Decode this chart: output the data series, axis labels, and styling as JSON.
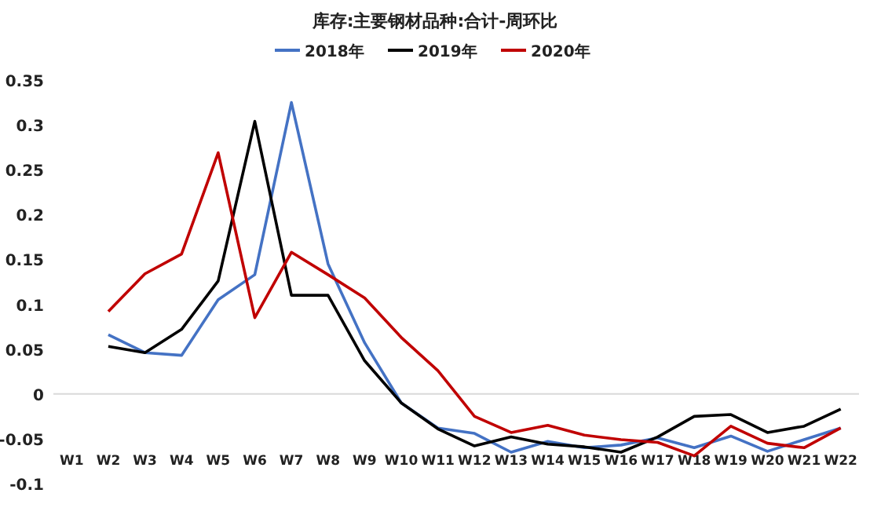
{
  "chart_data": {
    "type": "line",
    "title": "库存:主要钢材品种:合计-周环比",
    "categories": [
      "W1",
      "W2",
      "W3",
      "W4",
      "W5",
      "W6",
      "W7",
      "W8",
      "W9",
      "W10",
      "W11",
      "W12",
      "W13",
      "W14",
      "W15",
      "W16",
      "W17",
      "W18",
      "W19",
      "W20",
      "W21",
      "W22"
    ],
    "series": [
      {
        "name": "2018年",
        "color": "#4472c4",
        "values": [
          null,
          0.066,
          0.046,
          0.043,
          0.105,
          0.133,
          0.325,
          0.145,
          0.057,
          -0.01,
          -0.038,
          -0.044,
          -0.065,
          -0.053,
          -0.06,
          -0.057,
          -0.049,
          -0.06,
          -0.047,
          -0.064,
          -0.051,
          -0.038
        ]
      },
      {
        "name": "2019年",
        "color": "#000000",
        "values": [
          null,
          0.053,
          0.046,
          0.072,
          0.126,
          0.304,
          0.11,
          0.11,
          0.037,
          -0.01,
          -0.039,
          -0.058,
          -0.048,
          -0.056,
          -0.059,
          -0.065,
          -0.048,
          -0.025,
          -0.023,
          -0.043,
          -0.036,
          -0.017
        ]
      },
      {
        "name": "2020年",
        "color": "#c00000",
        "values": [
          null,
          0.092,
          0.134,
          0.156,
          0.269,
          0.085,
          0.158,
          0.133,
          0.107,
          0.063,
          0.026,
          -0.025,
          -0.043,
          -0.035,
          -0.046,
          -0.051,
          -0.054,
          -0.069,
          -0.036,
          -0.055,
          -0.06,
          -0.038
        ]
      }
    ],
    "ylim": [
      -0.1,
      0.35
    ],
    "yticks": [
      -0.1,
      -0.05,
      0,
      0.05,
      0.1,
      0.15,
      0.2,
      0.25,
      0.3,
      0.35
    ],
    "legend": "top",
    "marker": "none",
    "line_style": "solid"
  }
}
